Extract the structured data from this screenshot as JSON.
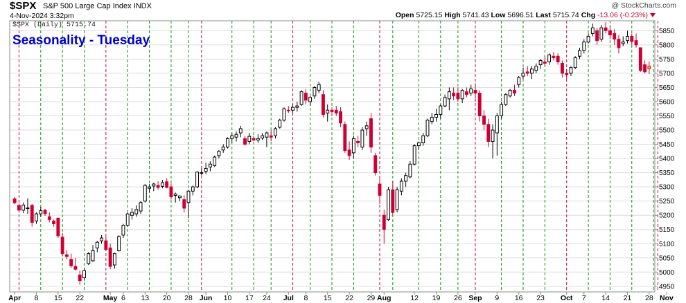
{
  "header": {
    "symbol": "$SPX",
    "name": "S&P 500 Large Cap Index INDX",
    "date": "4-Nov-2024 3:32pm",
    "watermark": "@ StockCharts.com",
    "open_label": "Open",
    "open": "5725.15",
    "high_label": "High",
    "high": "5741.43",
    "low_label": "Low",
    "low": "5696.51",
    "last_label": "Last",
    "last": "5715.74",
    "chg_label": "Chg",
    "chg": "-13.06 (-0.23%)"
  },
  "colors": {
    "up": "#000000",
    "down": "#cc0033",
    "tuesday_line": "#cc0033",
    "other_line": "#009900",
    "title": "#0000cc",
    "grid": "#dddddd"
  },
  "chart_data": {
    "type": "candlestick",
    "title": "Seasonality - Tuesday",
    "legend": "$SPX (Daily) 5715.74",
    "ylim": [
      4935,
      5880
    ],
    "y_ticks": [
      4950,
      5000,
      5050,
      5100,
      5150,
      5200,
      5250,
      5300,
      5350,
      5400,
      5450,
      5500,
      5550,
      5600,
      5650,
      5700,
      5750,
      5800,
      5850
    ],
    "x_labels": [
      {
        "label": "Apr",
        "index": 0,
        "bold": true
      },
      {
        "label": "8",
        "index": 5
      },
      {
        "label": "15",
        "index": 10
      },
      {
        "label": "22",
        "index": 15
      },
      {
        "label": "May",
        "index": 22,
        "bold": true
      },
      {
        "label": "6",
        "index": 25
      },
      {
        "label": "13",
        "index": 30
      },
      {
        "label": "20",
        "index": 35
      },
      {
        "label": "28",
        "index": 40
      },
      {
        "label": "Jun",
        "index": 44,
        "bold": true
      },
      {
        "label": "10",
        "index": 49
      },
      {
        "label": "17",
        "index": 54
      },
      {
        "label": "24",
        "index": 58
      },
      {
        "label": "Jul",
        "index": 63,
        "bold": true
      },
      {
        "label": "8",
        "index": 67
      },
      {
        "label": "15",
        "index": 72
      },
      {
        "label": "22",
        "index": 77
      },
      {
        "label": "29",
        "index": 82
      },
      {
        "label": "Aug",
        "index": 85,
        "bold": true
      },
      {
        "label": "12",
        "index": 92
      },
      {
        "label": "19",
        "index": 97
      },
      {
        "label": "26",
        "index": 102
      },
      {
        "label": "Sep",
        "index": 106,
        "bold": true
      },
      {
        "label": "9",
        "index": 111
      },
      {
        "label": "16",
        "index": 116
      },
      {
        "label": "23",
        "index": 121
      },
      {
        "label": "Oct",
        "index": 127,
        "bold": true
      },
      {
        "label": "7",
        "index": 131
      },
      {
        "label": "14",
        "index": 136
      },
      {
        "label": "21",
        "index": 141
      },
      {
        "label": "28",
        "index": 146
      },
      {
        "label": "Nov",
        "index": 150,
        "bold": true
      }
    ],
    "tuesday_lines": [
      1,
      21,
      43,
      64,
      84,
      106,
      127,
      148
    ],
    "week_lines": [
      6,
      11,
      16,
      26,
      31,
      36,
      40,
      50,
      55,
      59,
      68,
      73,
      78,
      87,
      93,
      98,
      102,
      112,
      117,
      122,
      132,
      137,
      142,
      147
    ],
    "candles": [
      [
        5258,
        5264,
        5239,
        5244
      ],
      [
        5235,
        5242,
        5210,
        5218
      ],
      [
        5218,
        5245,
        5208,
        5236
      ],
      [
        5225,
        5260,
        5205,
        5226
      ],
      [
        5235,
        5240,
        5160,
        5175
      ],
      [
        5180,
        5210,
        5170,
        5205
      ],
      [
        5205,
        5230,
        5195,
        5216
      ],
      [
        5218,
        5222,
        5198,
        5206
      ],
      [
        5195,
        5210,
        5175,
        5185
      ],
      [
        5180,
        5185,
        5160,
        5170
      ],
      [
        5190,
        5185,
        5120,
        5128
      ],
      [
        5123,
        5138,
        5055,
        5065
      ],
      [
        5061,
        5078,
        5045,
        5055
      ],
      [
        5045,
        5065,
        5015,
        5022
      ],
      [
        5020,
        5050,
        5005,
        5010
      ],
      [
        4990,
        5005,
        4955,
        4970
      ],
      [
        4980,
        5015,
        4970,
        5005
      ],
      [
        5030,
        5070,
        5025,
        5065
      ],
      [
        5040,
        5095,
        5036,
        5075
      ],
      [
        5085,
        5110,
        5070,
        5105
      ],
      [
        5110,
        5130,
        5100,
        5120
      ],
      [
        5110,
        5125,
        5075,
        5080
      ],
      [
        5085,
        5100,
        5010,
        5020
      ],
      [
        5025,
        5068,
        5012,
        5065
      ],
      [
        5075,
        5130,
        5072,
        5125
      ],
      [
        5130,
        5170,
        5120,
        5165
      ],
      [
        5165,
        5210,
        5160,
        5205
      ],
      [
        5200,
        5225,
        5185,
        5210
      ],
      [
        5205,
        5235,
        5195,
        5220
      ],
      [
        5215,
        5250,
        5205,
        5245
      ],
      [
        5250,
        5310,
        5245,
        5305
      ],
      [
        5295,
        5310,
        5280,
        5300
      ],
      [
        5303,
        5315,
        5285,
        5310
      ],
      [
        5305,
        5320,
        5290,
        5298
      ],
      [
        5302,
        5325,
        5295,
        5315
      ],
      [
        5318,
        5330,
        5295,
        5298
      ],
      [
        5300,
        5312,
        5255,
        5265
      ],
      [
        5270,
        5280,
        5245,
        5275
      ],
      [
        5262,
        5270,
        5250,
        5268
      ],
      [
        5255,
        5270,
        5210,
        5225
      ],
      [
        5245,
        5290,
        5190,
        5285
      ],
      [
        5285,
        5305,
        5270,
        5300
      ],
      [
        5300,
        5355,
        5295,
        5352
      ],
      [
        5350,
        5365,
        5340,
        5350
      ],
      [
        5355,
        5385,
        5345,
        5365
      ],
      [
        5370,
        5390,
        5355,
        5380
      ],
      [
        5375,
        5410,
        5370,
        5405
      ],
      [
        5410,
        5430,
        5400,
        5425
      ],
      [
        5430,
        5450,
        5420,
        5440
      ],
      [
        5440,
        5475,
        5435,
        5470
      ],
      [
        5470,
        5490,
        5455,
        5480
      ],
      [
        5475,
        5495,
        5460,
        5485
      ],
      [
        5490,
        5515,
        5475,
        5505
      ],
      [
        5470,
        5480,
        5445,
        5450
      ],
      [
        5460,
        5490,
        5450,
        5478
      ],
      [
        5470,
        5480,
        5460,
        5465
      ],
      [
        5465,
        5485,
        5455,
        5470
      ],
      [
        5472,
        5490,
        5465,
        5480
      ],
      [
        5475,
        5495,
        5440,
        5490
      ],
      [
        5480,
        5500,
        5460,
        5475
      ],
      [
        5480,
        5510,
        5470,
        5505
      ],
      [
        5510,
        5540,
        5505,
        5535
      ],
      [
        5535,
        5580,
        5530,
        5575
      ],
      [
        5570,
        5585,
        5560,
        5568
      ],
      [
        5570,
        5590,
        5560,
        5580
      ],
      [
        5580,
        5600,
        5565,
        5585
      ],
      [
        5590,
        5640,
        5585,
        5635
      ],
      [
        5630,
        5645,
        5590,
        5605
      ],
      [
        5600,
        5620,
        5585,
        5615
      ],
      [
        5620,
        5655,
        5610,
        5650
      ],
      [
        5640,
        5670,
        5630,
        5660
      ],
      [
        5625,
        5640,
        5545,
        5555
      ],
      [
        5560,
        5590,
        5530,
        5570
      ],
      [
        5570,
        5580,
        5550,
        5565
      ],
      [
        5570,
        5585,
        5550,
        5560
      ],
      [
        5565,
        5580,
        5510,
        5525
      ],
      [
        5520,
        5530,
        5420,
        5428
      ],
      [
        5430,
        5460,
        5395,
        5410
      ],
      [
        5420,
        5480,
        5400,
        5470
      ],
      [
        5460,
        5480,
        5440,
        5455
      ],
      [
        5440,
        5510,
        5430,
        5500
      ],
      [
        5505,
        5530,
        5480,
        5515
      ],
      [
        5540,
        5560,
        5420,
        5440
      ],
      [
        5410,
        5420,
        5340,
        5350
      ],
      [
        5310,
        5330,
        5240,
        5270
      ],
      [
        5200,
        5220,
        5100,
        5150
      ],
      [
        5185,
        5300,
        5180,
        5290
      ],
      [
        5290,
        5320,
        5200,
        5210
      ],
      [
        5220,
        5300,
        5210,
        5290
      ],
      [
        5285,
        5330,
        5270,
        5320
      ],
      [
        5320,
        5350,
        5300,
        5340
      ],
      [
        5335,
        5390,
        5330,
        5380
      ],
      [
        5380,
        5450,
        5375,
        5445
      ],
      [
        5445,
        5460,
        5430,
        5455
      ],
      [
        5455,
        5490,
        5445,
        5480
      ],
      [
        5480,
        5540,
        5475,
        5535
      ],
      [
        5530,
        5560,
        5520,
        5545
      ],
      [
        5545,
        5575,
        5530,
        5555
      ],
      [
        5555,
        5590,
        5540,
        5585
      ],
      [
        5585,
        5625,
        5580,
        5615
      ],
      [
        5610,
        5650,
        5570,
        5635
      ],
      [
        5630,
        5650,
        5605,
        5620
      ],
      [
        5630,
        5650,
        5600,
        5610
      ],
      [
        5610,
        5645,
        5595,
        5640
      ],
      [
        5635,
        5650,
        5615,
        5625
      ],
      [
        5630,
        5660,
        5620,
        5645
      ],
      [
        5640,
        5665,
        5600,
        5630
      ],
      [
        5630,
        5640,
        5530,
        5550
      ],
      [
        5550,
        5570,
        5500,
        5520
      ],
      [
        5520,
        5540,
        5440,
        5460
      ],
      [
        5460,
        5520,
        5400,
        5500
      ],
      [
        5490,
        5560,
        5410,
        5550
      ],
      [
        5550,
        5600,
        5540,
        5590
      ],
      [
        5590,
        5630,
        5585,
        5625
      ],
      [
        5620,
        5645,
        5615,
        5640
      ],
      [
        5640,
        5660,
        5620,
        5630
      ],
      [
        5660,
        5690,
        5650,
        5685
      ],
      [
        5690,
        5720,
        5680,
        5700
      ],
      [
        5705,
        5725,
        5690,
        5700
      ],
      [
        5700,
        5725,
        5680,
        5715
      ],
      [
        5710,
        5735,
        5700,
        5725
      ],
      [
        5730,
        5750,
        5715,
        5745
      ],
      [
        5740,
        5760,
        5725,
        5735
      ],
      [
        5740,
        5770,
        5730,
        5765
      ],
      [
        5760,
        5775,
        5745,
        5755
      ],
      [
        5760,
        5770,
        5730,
        5740
      ],
      [
        5735,
        5745,
        5685,
        5700
      ],
      [
        5700,
        5715,
        5680,
        5695
      ],
      [
        5700,
        5725,
        5690,
        5720
      ],
      [
        5720,
        5760,
        5715,
        5755
      ],
      [
        5760,
        5790,
        5750,
        5780
      ],
      [
        5780,
        5820,
        5770,
        5810
      ],
      [
        5810,
        5840,
        5805,
        5830
      ],
      [
        5840,
        5875,
        5830,
        5860
      ],
      [
        5850,
        5860,
        5800,
        5815
      ],
      [
        5820,
        5870,
        5810,
        5860
      ],
      [
        5860,
        5880,
        5840,
        5850
      ],
      [
        5850,
        5870,
        5820,
        5835
      ],
      [
        5840,
        5855,
        5800,
        5820
      ],
      [
        5820,
        5835,
        5770,
        5790
      ],
      [
        5805,
        5830,
        5795,
        5810
      ],
      [
        5815,
        5850,
        5805,
        5830
      ],
      [
        5830,
        5840,
        5800,
        5812
      ],
      [
        5815,
        5840,
        5790,
        5800
      ],
      [
        5790,
        5790,
        5705,
        5710
      ],
      [
        5730,
        5745,
        5700,
        5705
      ],
      [
        5725,
        5741,
        5697,
        5716
      ]
    ],
    "last_candle_highlight": "#ffcc00"
  }
}
